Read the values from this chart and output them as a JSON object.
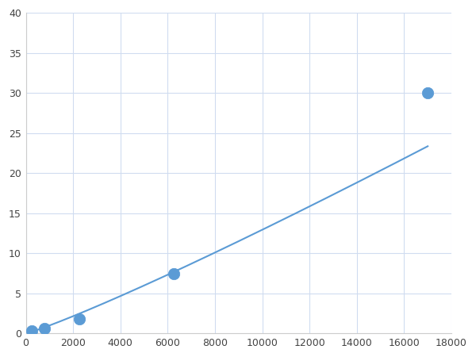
{
  "x_points": [
    250,
    800,
    2250,
    6250,
    17000
  ],
  "y_points": [
    0.3,
    0.6,
    1.8,
    7.5,
    30.0
  ],
  "line_color": "#5B9BD5",
  "marker_color": "#5B9BD5",
  "marker_size": 6,
  "xlim": [
    0,
    18000
  ],
  "ylim": [
    0,
    40
  ],
  "xticks": [
    0,
    2000,
    4000,
    6000,
    8000,
    10000,
    12000,
    14000,
    16000,
    18000
  ],
  "yticks": [
    0,
    5,
    10,
    15,
    20,
    25,
    30,
    35,
    40
  ],
  "grid_color": "#D0DCF0",
  "background_color": "#FFFFFF",
  "figsize": [
    6.0,
    4.5
  ],
  "dpi": 100
}
